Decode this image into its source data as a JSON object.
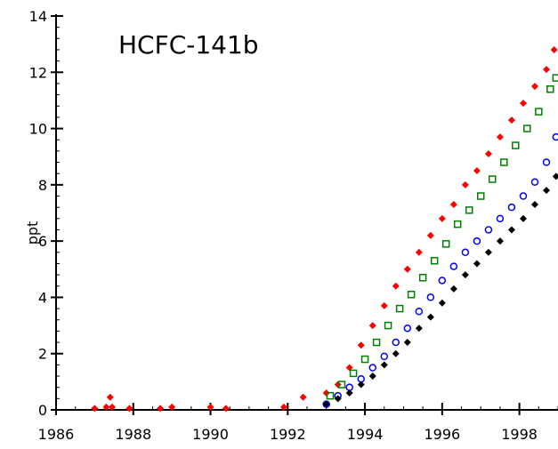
{
  "chart_data": {
    "type": "scatter",
    "title": "HCFC-141b",
    "xlabel": "",
    "ylabel": "ppt",
    "xlim": [
      1986,
      1999
    ],
    "ylim": [
      0,
      14
    ],
    "xticks": [
      1986,
      1988,
      1990,
      1992,
      1994,
      1996,
      1998
    ],
    "yticks": [
      0,
      2,
      4,
      6,
      8,
      10,
      12,
      14
    ],
    "grid": false,
    "legend": "none",
    "series": [
      {
        "color": "#ff0000",
        "marker": "filled-diamond",
        "points": [
          [
            1987.0,
            0.05
          ],
          [
            1987.3,
            0.1
          ],
          [
            1987.4,
            0.45
          ],
          [
            1987.45,
            0.1
          ],
          [
            1987.9,
            0.05
          ],
          [
            1988.7,
            0.05
          ],
          [
            1989.0,
            0.1
          ],
          [
            1990.0,
            0.1
          ],
          [
            1990.4,
            0.05
          ],
          [
            1991.9,
            0.1
          ],
          [
            1992.4,
            0.45
          ],
          [
            1993.0,
            0.6
          ],
          [
            1993.3,
            0.9
          ],
          [
            1993.6,
            1.5
          ],
          [
            1993.9,
            2.3
          ],
          [
            1994.2,
            3.0
          ],
          [
            1994.5,
            3.7
          ],
          [
            1994.8,
            4.4
          ],
          [
            1995.1,
            5.0
          ],
          [
            1995.4,
            5.6
          ],
          [
            1995.7,
            6.2
          ],
          [
            1996.0,
            6.8
          ],
          [
            1996.3,
            7.3
          ],
          [
            1996.6,
            8.0
          ],
          [
            1996.9,
            8.5
          ],
          [
            1997.2,
            9.1
          ],
          [
            1997.5,
            9.7
          ],
          [
            1997.8,
            10.3
          ],
          [
            1998.1,
            10.9
          ],
          [
            1998.4,
            11.5
          ],
          [
            1998.7,
            12.1
          ],
          [
            1998.9,
            12.8
          ]
        ]
      },
      {
        "color": "#008000",
        "marker": "open-square",
        "points": [
          [
            1993.1,
            0.5
          ],
          [
            1993.4,
            0.9
          ],
          [
            1993.7,
            1.3
          ],
          [
            1994.0,
            1.8
          ],
          [
            1994.3,
            2.4
          ],
          [
            1994.6,
            3.0
          ],
          [
            1994.9,
            3.6
          ],
          [
            1995.2,
            4.1
          ],
          [
            1995.5,
            4.7
          ],
          [
            1995.8,
            5.3
          ],
          [
            1996.1,
            5.9
          ],
          [
            1996.4,
            6.6
          ],
          [
            1996.7,
            7.1
          ],
          [
            1997.0,
            7.6
          ],
          [
            1997.3,
            8.2
          ],
          [
            1997.6,
            8.8
          ],
          [
            1997.9,
            9.4
          ],
          [
            1998.2,
            10.0
          ],
          [
            1998.5,
            10.6
          ],
          [
            1998.8,
            11.4
          ],
          [
            1998.95,
            11.8
          ]
        ]
      },
      {
        "color": "#0000ff",
        "marker": "open-circle",
        "points": [
          [
            1993.0,
            0.2
          ],
          [
            1993.3,
            0.5
          ],
          [
            1993.6,
            0.8
          ],
          [
            1993.9,
            1.1
          ],
          [
            1994.2,
            1.5
          ],
          [
            1994.5,
            1.9
          ],
          [
            1994.8,
            2.4
          ],
          [
            1995.1,
            2.9
          ],
          [
            1995.4,
            3.5
          ],
          [
            1995.7,
            4.0
          ],
          [
            1996.0,
            4.6
          ],
          [
            1996.3,
            5.1
          ],
          [
            1996.6,
            5.6
          ],
          [
            1996.9,
            6.0
          ],
          [
            1997.2,
            6.4
          ],
          [
            1997.5,
            6.8
          ],
          [
            1997.8,
            7.2
          ],
          [
            1998.1,
            7.6
          ],
          [
            1998.4,
            8.1
          ],
          [
            1998.7,
            8.8
          ],
          [
            1998.95,
            9.7
          ]
        ]
      },
      {
        "color": "#000000",
        "marker": "filled-diamond",
        "points": [
          [
            1993.0,
            0.2
          ],
          [
            1993.3,
            0.4
          ],
          [
            1993.6,
            0.6
          ],
          [
            1993.9,
            0.9
          ],
          [
            1994.2,
            1.2
          ],
          [
            1994.5,
            1.6
          ],
          [
            1994.8,
            2.0
          ],
          [
            1995.1,
            2.4
          ],
          [
            1995.4,
            2.9
          ],
          [
            1995.7,
            3.3
          ],
          [
            1996.0,
            3.8
          ],
          [
            1996.3,
            4.3
          ],
          [
            1996.6,
            4.8
          ],
          [
            1996.9,
            5.2
          ],
          [
            1997.2,
            5.6
          ],
          [
            1997.5,
            6.0
          ],
          [
            1997.8,
            6.4
          ],
          [
            1998.1,
            6.8
          ],
          [
            1998.4,
            7.3
          ],
          [
            1998.7,
            7.8
          ],
          [
            1998.95,
            8.3
          ]
        ]
      }
    ]
  }
}
